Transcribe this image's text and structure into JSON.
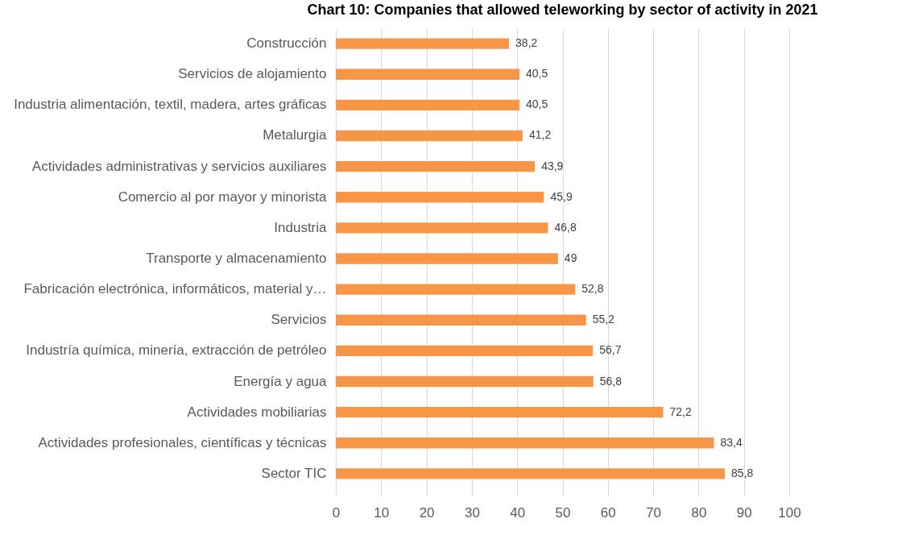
{
  "chart_data": {
    "type": "bar",
    "orientation": "horizontal",
    "title": "Chart 10: Companies that allowed teleworking by sector of activity in 2021",
    "categories": [
      "Construcción",
      "Servicios de alojamiento",
      "Industria alimentación, textil, madera, artes gráficas",
      "Metalurgia",
      "Actividades administrativas y servicios auxiliares",
      "Comercio al por mayor y minorista",
      "Industria ",
      "Transporte y almacenamiento",
      "Fabricación electrónica, informáticos, material y…",
      "Servicios",
      "Industría química, minería, extracción de petróleo",
      "Energía y agua",
      "Actividades mobiliarias",
      "Actividades profesionales, científicas y técnicas",
      "Sector TIC"
    ],
    "values": [
      38.2,
      40.5,
      40.5,
      41.2,
      43.9,
      45.9,
      46.8,
      49,
      52.8,
      55.2,
      56.7,
      56.8,
      72.2,
      83.4,
      85.8
    ],
    "value_labels": [
      "38,2",
      "40,5",
      "40,5",
      "41,2",
      "43,9",
      "45,9",
      "46,8",
      "49",
      "52,8",
      "55,2",
      "56,7",
      "56,8",
      "72,2",
      "83,4",
      "85,8"
    ],
    "color": "#f79646",
    "xlim": [
      0,
      100
    ],
    "xticks": [
      0,
      10,
      20,
      30,
      40,
      50,
      60,
      70,
      80,
      90,
      100
    ],
    "grid": "x"
  }
}
